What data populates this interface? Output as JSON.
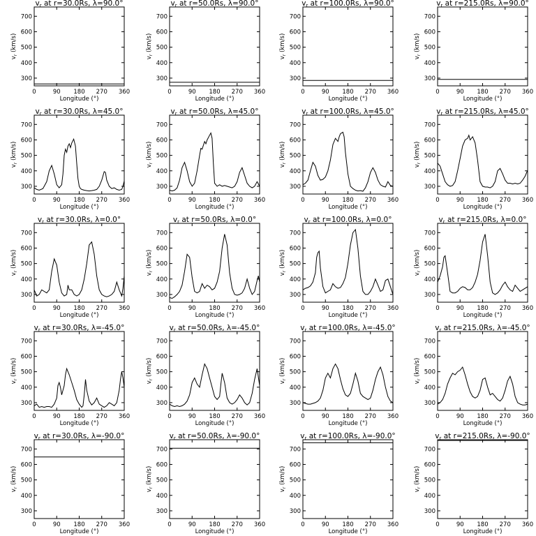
{
  "chart_data": {
    "type": "line",
    "layout": "5x4 grid",
    "xlabel": "Longitude (°)",
    "ylabel": "v_r (km/s)",
    "xticks": [
      0,
      90,
      180,
      270,
      360
    ],
    "xtick_labels": [
      "0",
      "90",
      "180",
      "270",
      "360"
    ],
    "yticks": [
      300,
      400,
      500,
      600,
      700
    ],
    "yticks_labels": [
      "300",
      "400",
      "500",
      "600",
      "700"
    ],
    "xlim": [
      0,
      360
    ],
    "ylim": [
      250,
      760
    ],
    "grid": false,
    "color": "#000000",
    "panels": [
      {
        "title": "v_r at r=30.0Rs, λ=90.0°",
        "r": "30.0Rs",
        "lat": "90.0°",
        "x": [
          0,
          360
        ],
        "y": [
          262,
          262
        ]
      },
      {
        "title": "v_r at r=50.0Rs, λ=90.0°",
        "r": "50.0Rs",
        "lat": "90.0°",
        "x": [
          0,
          360
        ],
        "y": [
          273,
          273
        ]
      },
      {
        "title": "v_r at r=100.0Rs, λ=90.0°",
        "r": "100.0Rs",
        "lat": "90.0°",
        "x": [
          0,
          360
        ],
        "y": [
          285,
          285
        ]
      },
      {
        "title": "v_r at r=215.0Rs, λ=90.0°",
        "r": "215.0Rs",
        "lat": "90.0°",
        "x": [
          0,
          360
        ],
        "y": [
          292,
          292
        ]
      },
      {
        "title": "v_r at r=30.0Rs, λ=45.0°",
        "r": "30.0Rs",
        "lat": "45.0°",
        "x": [
          0,
          10,
          20,
          35,
          50,
          60,
          70,
          80,
          90,
          100,
          110,
          115,
          120,
          125,
          130,
          135,
          140,
          145,
          150,
          158,
          165,
          170,
          175,
          180,
          185,
          190,
          200,
          210,
          220,
          230,
          240,
          250,
          260,
          270,
          280,
          285,
          290,
          300,
          310,
          320,
          330,
          340,
          350,
          355,
          360
        ],
        "y": [
          290,
          280,
          275,
          285,
          330,
          400,
          435,
          380,
          310,
          290,
          310,
          380,
          500,
          540,
          520,
          560,
          575,
          550,
          580,
          605,
          560,
          450,
          350,
          300,
          285,
          280,
          275,
          272,
          270,
          272,
          275,
          280,
          300,
          340,
          395,
          390,
          340,
          300,
          285,
          290,
          280,
          275,
          280,
          300,
          335
        ]
      },
      {
        "title": "v_r at r=50.0Rs, λ=45.0°",
        "r": "50.0Rs",
        "lat": "45.0°",
        "x": [
          0,
          10,
          20,
          30,
          40,
          50,
          60,
          70,
          80,
          90,
          100,
          110,
          120,
          125,
          130,
          140,
          145,
          150,
          160,
          165,
          170,
          175,
          180,
          190,
          200,
          210,
          220,
          230,
          240,
          250,
          260,
          270,
          280,
          290,
          300,
          310,
          320,
          330,
          340,
          350,
          360
        ],
        "y": [
          275,
          270,
          275,
          290,
          340,
          420,
          455,
          400,
          330,
          300,
          320,
          400,
          500,
          545,
          540,
          590,
          575,
          600,
          630,
          645,
          610,
          450,
          320,
          300,
          310,
          300,
          305,
          300,
          295,
          290,
          300,
          330,
          390,
          420,
          370,
          320,
          300,
          290,
          300,
          330,
          300
        ]
      },
      {
        "title": "v_r at r=100.0Rs, λ=45.0°",
        "r": "100.0Rs",
        "lat": "45.0°",
        "x": [
          0,
          10,
          20,
          30,
          40,
          50,
          60,
          70,
          80,
          90,
          100,
          110,
          120,
          125,
          130,
          140,
          145,
          150,
          160,
          165,
          170,
          180,
          190,
          200,
          210,
          220,
          230,
          240,
          250,
          260,
          270,
          280,
          290,
          300,
          310,
          320,
          330,
          340,
          350,
          360
        ],
        "y": [
          310,
          320,
          340,
          400,
          455,
          430,
          370,
          340,
          345,
          360,
          400,
          470,
          570,
          590,
          610,
          590,
          620,
          640,
          650,
          620,
          520,
          380,
          300,
          285,
          275,
          270,
          272,
          268,
          290,
          330,
          390,
          420,
          390,
          340,
          310,
          300,
          295,
          330,
          305,
          300
        ]
      },
      {
        "title": "v_r at r=215.0Rs, λ=45.0°",
        "r": "215.0Rs",
        "lat": "45.0°",
        "x": [
          0,
          10,
          20,
          30,
          40,
          50,
          60,
          70,
          80,
          90,
          100,
          110,
          120,
          125,
          130,
          140,
          150,
          160,
          170,
          180,
          190,
          200,
          210,
          220,
          230,
          240,
          250,
          260,
          270,
          280,
          290,
          300,
          310,
          320,
          330,
          340,
          350,
          360
        ],
        "y": [
          450,
          430,
          380,
          330,
          310,
          300,
          305,
          330,
          400,
          480,
          560,
          600,
          610,
          630,
          600,
          620,
          580,
          470,
          330,
          300,
          295,
          295,
          290,
          300,
          330,
          400,
          415,
          380,
          340,
          320,
          320,
          315,
          320,
          315,
          320,
          340,
          365,
          405
        ]
      },
      {
        "title": "v_r at r=30.0Rs, λ=0.0°",
        "r": "30.0Rs",
        "lat": "0.0°",
        "x": [
          0,
          10,
          20,
          30,
          40,
          50,
          60,
          70,
          80,
          90,
          100,
          110,
          120,
          130,
          135,
          140,
          150,
          160,
          170,
          180,
          190,
          200,
          210,
          220,
          230,
          240,
          250,
          260,
          270,
          280,
          290,
          300,
          310,
          320,
          330,
          340,
          350,
          355,
          360
        ],
        "y": [
          330,
          290,
          300,
          330,
          320,
          310,
          330,
          450,
          530,
          490,
          380,
          310,
          290,
          300,
          360,
          330,
          330,
          300,
          290,
          300,
          330,
          400,
          500,
          620,
          640,
          560,
          420,
          330,
          300,
          290,
          285,
          290,
          300,
          320,
          380,
          330,
          290,
          340,
          420
        ]
      },
      {
        "title": "v_r at r=50.0Rs, λ=0.0°",
        "r": "50.0Rs",
        "lat": "0.0°",
        "x": [
          0,
          10,
          20,
          30,
          40,
          50,
          60,
          70,
          80,
          90,
          100,
          110,
          120,
          130,
          140,
          150,
          160,
          170,
          180,
          190,
          200,
          210,
          220,
          230,
          240,
          250,
          260,
          270,
          280,
          290,
          300,
          310,
          320,
          330,
          340,
          350,
          355,
          360
        ],
        "y": [
          280,
          275,
          285,
          300,
          320,
          360,
          450,
          560,
          540,
          410,
          320,
          310,
          320,
          370,
          340,
          360,
          350,
          330,
          340,
          380,
          450,
          600,
          690,
          620,
          440,
          340,
          300,
          295,
          300,
          310,
          340,
          400,
          340,
          300,
          320,
          390,
          420,
          380
        ]
      },
      {
        "title": "v_r at r=100.0Rs, λ=0.0°",
        "r": "100.0Rs",
        "lat": "0.0°",
        "x": [
          0,
          10,
          20,
          30,
          40,
          50,
          55,
          60,
          65,
          70,
          80,
          90,
          100,
          110,
          120,
          130,
          140,
          150,
          160,
          170,
          180,
          190,
          200,
          210,
          220,
          230,
          240,
          250,
          260,
          270,
          280,
          290,
          300,
          310,
          320,
          330,
          340,
          350,
          360
        ],
        "y": [
          330,
          340,
          345,
          355,
          380,
          440,
          540,
          570,
          580,
          470,
          350,
          310,
          320,
          330,
          370,
          350,
          340,
          345,
          370,
          410,
          500,
          620,
          700,
          720,
          600,
          420,
          320,
          300,
          300,
          320,
          350,
          400,
          360,
          320,
          330,
          390,
          400,
          350,
          300
        ]
      },
      {
        "title": "v_r at r=215.0Rs, λ=0.0°",
        "r": "215.0Rs",
        "lat": "0.0°",
        "x": [
          0,
          10,
          20,
          25,
          30,
          40,
          50,
          60,
          70,
          80,
          90,
          100,
          110,
          120,
          130,
          140,
          150,
          160,
          170,
          180,
          190,
          200,
          210,
          220,
          230,
          240,
          250,
          260,
          270,
          280,
          290,
          300,
          310,
          320,
          330,
          340,
          350,
          360
        ],
        "y": [
          380,
          420,
          480,
          540,
          550,
          440,
          320,
          310,
          310,
          320,
          340,
          350,
          345,
          330,
          330,
          345,
          380,
          430,
          520,
          640,
          690,
          550,
          380,
          310,
          300,
          310,
          330,
          360,
          380,
          350,
          330,
          320,
          360,
          340,
          320,
          330,
          340,
          350
        ]
      },
      {
        "title": "v_r at r=30.0Rs, λ=-45.0°",
        "r": "30.0Rs",
        "lat": "-45.0°",
        "x": [
          0,
          10,
          20,
          30,
          40,
          50,
          60,
          70,
          80,
          90,
          95,
          100,
          105,
          110,
          120,
          125,
          130,
          140,
          150,
          160,
          170,
          180,
          190,
          195,
          200,
          205,
          210,
          220,
          230,
          240,
          250,
          260,
          270,
          280,
          290,
          300,
          310,
          320,
          330,
          340,
          345,
          350,
          355,
          360
        ],
        "y": [
          280,
          290,
          270,
          275,
          270,
          275,
          275,
          270,
          290,
          330,
          410,
          430,
          400,
          350,
          410,
          480,
          520,
          480,
          430,
          380,
          320,
          290,
          270,
          280,
          350,
          450,
          380,
          310,
          285,
          300,
          330,
          290,
          280,
          270,
          280,
          300,
          290,
          280,
          300,
          380,
          450,
          500,
          460,
          400
        ]
      },
      {
        "title": "v_r at r=50.0Rs, λ=-45.0°",
        "r": "50.0Rs",
        "lat": "-45.0°",
        "x": [
          0,
          10,
          20,
          30,
          40,
          50,
          60,
          70,
          80,
          90,
          100,
          110,
          120,
          130,
          140,
          150,
          160,
          170,
          180,
          190,
          200,
          205,
          210,
          220,
          230,
          240,
          250,
          260,
          270,
          280,
          290,
          300,
          310,
          320,
          330,
          340,
          350,
          360
        ],
        "y": [
          290,
          280,
          275,
          280,
          275,
          280,
          290,
          310,
          350,
          430,
          460,
          420,
          400,
          480,
          550,
          520,
          460,
          400,
          340,
          320,
          340,
          420,
          490,
          430,
          330,
          300,
          290,
          300,
          320,
          350,
          330,
          300,
          285,
          300,
          360,
          450,
          520,
          410
        ]
      },
      {
        "title": "v_r at r=100.0Rs, λ=-45.0°",
        "r": "100.0Rs",
        "lat": "-45.0°",
        "x": [
          0,
          10,
          20,
          30,
          40,
          50,
          60,
          70,
          80,
          90,
          100,
          110,
          120,
          130,
          140,
          150,
          160,
          170,
          180,
          190,
          200,
          210,
          220,
          230,
          240,
          250,
          260,
          270,
          280,
          290,
          300,
          310,
          320,
          330,
          340,
          350,
          360
        ],
        "y": [
          300,
          295,
          290,
          290,
          295,
          300,
          310,
          330,
          380,
          460,
          490,
          460,
          520,
          550,
          520,
          450,
          390,
          350,
          340,
          360,
          420,
          490,
          440,
          360,
          340,
          330,
          320,
          330,
          380,
          450,
          500,
          530,
          480,
          400,
          340,
          310,
          300
        ]
      },
      {
        "title": "v_r at r=215.0Rs, λ=-45.0°",
        "r": "215.0Rs",
        "lat": "-45.0°",
        "x": [
          0,
          10,
          20,
          30,
          40,
          50,
          60,
          70,
          80,
          90,
          100,
          110,
          120,
          130,
          140,
          150,
          160,
          170,
          180,
          190,
          200,
          210,
          220,
          230,
          240,
          250,
          260,
          270,
          280,
          290,
          300,
          310,
          320,
          330,
          340,
          350,
          360
        ],
        "y": [
          290,
          300,
          320,
          360,
          420,
          460,
          490,
          480,
          500,
          510,
          530,
          480,
          420,
          370,
          340,
          330,
          340,
          380,
          450,
          460,
          400,
          350,
          360,
          340,
          320,
          310,
          330,
          380,
          440,
          470,
          420,
          340,
          300,
          290,
          285,
          285,
          290
        ]
      },
      {
        "title": "v_r at r=30.0Rs, λ=-90.0°",
        "r": "30.0Rs",
        "lat": "-90.0°",
        "x": [
          0,
          360
        ],
        "y": [
          648,
          648
        ]
      },
      {
        "title": "v_r at r=50.0Rs, λ=-90.0°",
        "r": "50.0Rs",
        "lat": "-90.0°",
        "x": [
          0,
          360
        ],
        "y": [
          705,
          705
        ]
      },
      {
        "title": "v_r at r=100.0Rs, λ=-90.0°",
        "r": "100.0Rs",
        "lat": "-90.0°",
        "x": [
          0,
          360
        ],
        "y": [
          740,
          740
        ]
      },
      {
        "title": "v_r at r=215.0Rs, λ=-90.0°",
        "r": "215.0Rs",
        "lat": "-90.0°",
        "x": [
          0,
          360
        ],
        "y": [
          755,
          755
        ]
      }
    ]
  }
}
